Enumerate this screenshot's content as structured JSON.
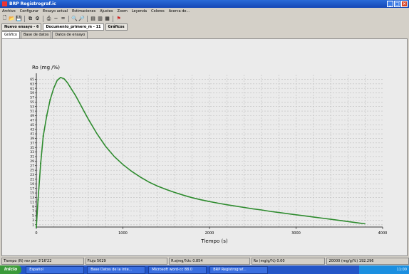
{
  "window": {
    "title": "BRP Registrograf.ic"
  },
  "menu": [
    "Archivo",
    "Configurar",
    "Ensayo actual",
    "Estimaciones",
    "Ajustes",
    "Zoom",
    "Leyenda",
    "Colores",
    "Acerca de..."
  ],
  "toolbar": {
    "icons": [
      "new-icon",
      "open-icon",
      "save-icon",
      "copy-icon",
      "settings-icon",
      "print-icon",
      "minus-icon",
      "equal-icon",
      "zoom-in-icon",
      "zoom-out-icon",
      "chart1-icon",
      "chart2-icon",
      "chart3-icon",
      "flag-icon"
    ]
  },
  "doc_tabs": [
    "Nuevo ensayo - 6",
    "Documento_primero_m - 11",
    "Gráficos"
  ],
  "sub_tabs": [
    "Gráfico",
    "Base de datos",
    "Datos de ensayo"
  ],
  "chart_data": {
    "type": "line",
    "ylabel": "Ro (mg /%)",
    "xlabel": "Tiempo (s)",
    "xlim": [
      0,
      4000
    ],
    "ylim": [
      0,
      67
    ],
    "x_ticks": [
      0,
      1000,
      2000,
      3000,
      4000
    ],
    "x_tick_labels": [
      "0",
      "1000",
      "2000",
      "3000",
      "4000"
    ],
    "y_ticks": [
      1,
      3,
      5,
      7,
      9,
      11,
      13,
      15,
      17,
      19,
      21,
      23,
      25,
      27,
      29,
      31,
      33,
      35,
      37,
      39,
      41,
      43,
      45,
      47,
      49,
      51,
      53,
      55,
      57,
      59,
      61,
      63,
      65
    ],
    "grid": true,
    "series": [
      {
        "color": "#2e8b2e",
        "x": [
          0,
          20,
          50,
          80,
          120,
          160,
          200,
          240,
          280,
          320,
          360,
          400,
          450,
          500,
          550,
          600,
          700,
          800,
          900,
          1000,
          1100,
          1200,
          1300,
          1400,
          1500,
          1600,
          1700,
          1800,
          1900,
          2000,
          2100,
          2200,
          2300,
          2400,
          2500,
          2600,
          2700,
          2800,
          2900,
          3000,
          3100,
          3200,
          3300,
          3400,
          3500,
          3600,
          3700,
          3800
        ],
        "y": [
          0,
          12,
          28,
          40,
          49,
          56,
          61,
          64.5,
          65.8,
          65.2,
          63.5,
          61,
          58,
          54.5,
          51,
          47.5,
          41,
          35.5,
          31,
          27.5,
          24.5,
          22,
          19.8,
          18,
          16.5,
          15.2,
          14,
          12.9,
          12,
          11.2,
          10.5,
          9.8,
          9.2,
          8.6,
          8,
          7.5,
          6.9,
          6.4,
          5.9,
          5.4,
          4.9,
          4.4,
          3.9,
          3.4,
          2.9,
          2.4,
          1.9,
          1.4
        ]
      }
    ]
  },
  "status": [
    "Tiempo (N) rev por 3'16'22",
    "Flujo 5029",
    "R.ejmg/%tc 0.854",
    "Ro (mg/g/%) 0.00",
    "20000 (mg/g/%) 192.296"
  ],
  "taskbar": {
    "start": "Inicio",
    "items": [
      "Español",
      "Base Datos de la inte...",
      "Microsoft word-cc 88.0",
      "BRP Registrograf..."
    ],
    "clock": "11:00"
  }
}
